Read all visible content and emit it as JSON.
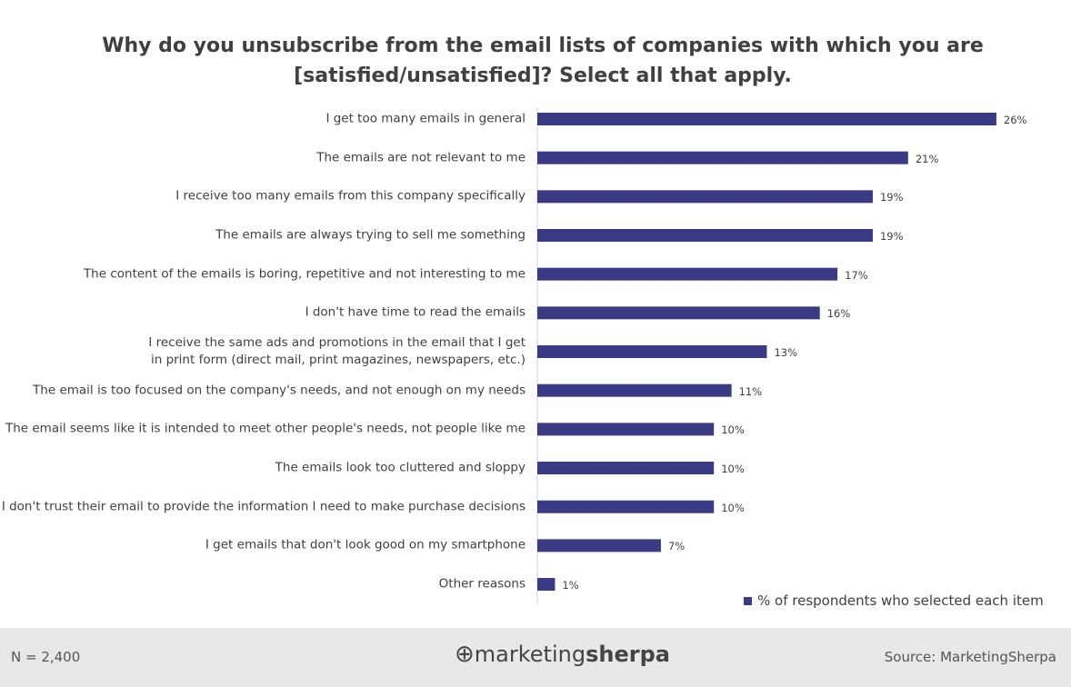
{
  "chart_data": {
    "type": "bar",
    "orientation": "horizontal",
    "title": "Why do you unsubscribe from the email lists of companies with which you are [satisfied/unsatisfied]? Select all that apply.",
    "categories": [
      "I get too many emails in general",
      "The emails are not relevant to me",
      "I receive too many emails from this company specifically",
      "The emails are always trying to sell me something",
      "The content of the emails is boring, repetitive and not interesting to me",
      "I don't have time to read the emails",
      "I receive the same ads and promotions in the email that I get\nin print form (direct mail, print magazines, newspapers, etc.)",
      "The email is too focused on the company's needs, and not enough on my needs",
      "The email seems like it is intended to meet other people's needs, not people like me",
      "The emails look too cluttered and sloppy",
      "I don't trust their email to provide the information I need to make purchase decisions",
      "I get emails that don't look good on my smartphone",
      "Other reasons"
    ],
    "series": [
      {
        "name": "% of respondents who selected each item",
        "color": "#3b3a84",
        "values": [
          26,
          21,
          19,
          19,
          17,
          16,
          13,
          11,
          10,
          10,
          10,
          7,
          1
        ],
        "value_labels": [
          "26%",
          "21%",
          "19%",
          "19%",
          "17%",
          "16%",
          "13%",
          "11%",
          "10%",
          "10%",
          "10%",
          "7%",
          "1%"
        ]
      }
    ],
    "legend": "bottom-right"
  },
  "footer": {
    "note": "N = 2,400",
    "logo_prefix": "marketing",
    "logo_suffix": "sherpa",
    "source": "Source: MarketingSherpa"
  }
}
